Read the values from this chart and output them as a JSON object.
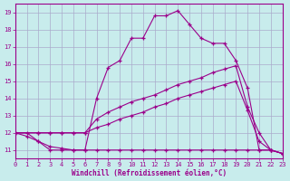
{
  "xlabel": "Windchill (Refroidissement éolien,°C)",
  "bg_color": "#c8ecec",
  "line_color": "#9b008b",
  "grid_color": "#aaaacc",
  "xlim": [
    0,
    23
  ],
  "ylim": [
    10.5,
    19.5
  ],
  "xticks": [
    0,
    1,
    2,
    3,
    4,
    5,
    6,
    7,
    8,
    9,
    10,
    11,
    12,
    13,
    14,
    15,
    16,
    17,
    18,
    19,
    20,
    21,
    22,
    23
  ],
  "yticks": [
    11,
    12,
    13,
    14,
    15,
    16,
    17,
    18,
    19
  ],
  "lines": [
    {
      "x": [
        0,
        1,
        2,
        3,
        4,
        5,
        6,
        7,
        8,
        9,
        10,
        11,
        12,
        13,
        14,
        15,
        16,
        17,
        18,
        19,
        20,
        21,
        22,
        23
      ],
      "y": [
        12,
        12,
        11.5,
        11,
        11,
        11,
        11,
        14,
        15.8,
        16.2,
        17.5,
        17.5,
        18.8,
        18.8,
        19.1,
        18.3,
        17.5,
        17.2,
        17.2,
        16.2,
        14.6,
        11,
        11,
        10.8
      ]
    },
    {
      "x": [
        0,
        2,
        3,
        4,
        5,
        6,
        7,
        8,
        9,
        10,
        11,
        12,
        13,
        14,
        15,
        16,
        17,
        18,
        19,
        20,
        21,
        22,
        23
      ],
      "y": [
        12,
        12,
        12,
        12,
        12,
        12,
        12.8,
        13.2,
        13.5,
        13.8,
        14.0,
        14.2,
        14.5,
        14.8,
        15.0,
        15.2,
        15.5,
        15.7,
        15.9,
        13.5,
        12,
        11,
        10.8
      ]
    },
    {
      "x": [
        0,
        2,
        3,
        4,
        5,
        6,
        7,
        8,
        9,
        10,
        11,
        12,
        13,
        14,
        15,
        16,
        17,
        18,
        19,
        20,
        21,
        22,
        23
      ],
      "y": [
        12,
        12,
        12,
        12,
        12,
        12,
        12.3,
        12.5,
        12.8,
        13.0,
        13.2,
        13.5,
        13.7,
        14.0,
        14.2,
        14.4,
        14.6,
        14.8,
        15.0,
        13.3,
        11.5,
        11,
        10.8
      ]
    },
    {
      "x": [
        0,
        1,
        2,
        3,
        4,
        5,
        6,
        7,
        8,
        9,
        10,
        11,
        12,
        13,
        14,
        15,
        16,
        17,
        18,
        19,
        20,
        21,
        22,
        23
      ],
      "y": [
        12,
        11.8,
        11.5,
        11.2,
        11.1,
        11,
        11,
        11,
        11,
        11,
        11,
        11,
        11,
        11,
        11,
        11,
        11,
        11,
        11,
        11,
        11,
        11,
        11,
        10.8
      ]
    }
  ]
}
